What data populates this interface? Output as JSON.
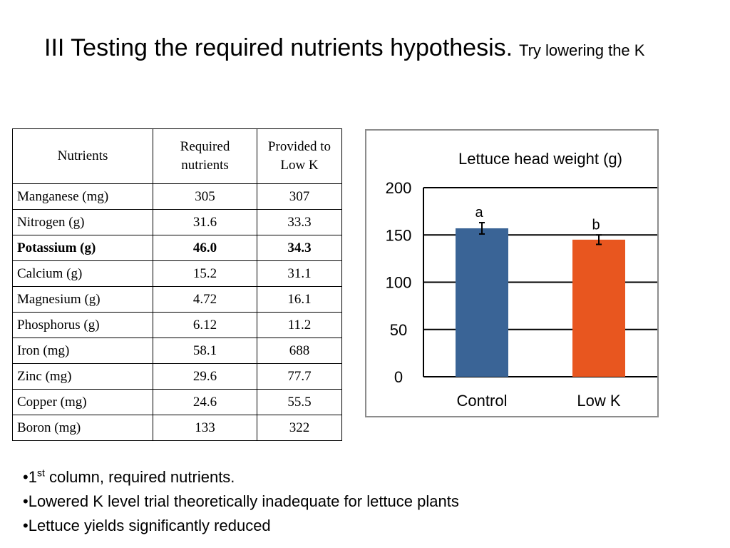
{
  "slide": {
    "title_main": "III  Testing the required nutrients hypothesis.",
    "title_sub": "Try lowering the K"
  },
  "table": {
    "headers": [
      "Nutrients",
      "Required nutrients",
      "Provided to Low K"
    ],
    "rows": [
      {
        "nutrient": "Manganese (mg)",
        "required": "305",
        "provided": "307"
      },
      {
        "nutrient": "Nitrogen (g)",
        "required": "31.6",
        "provided": "33.3"
      },
      {
        "nutrient": "Potassium (g)",
        "required": "46.0",
        "provided": "34.3",
        "bold": true
      },
      {
        "nutrient": "Calcium (g)",
        "required": "15.2",
        "provided": "31.1"
      },
      {
        "nutrient": "Magnesium (g)",
        "required": "4.72",
        "provided": "16.1"
      },
      {
        "nutrient": "Phosphorus (g)",
        "required": "6.12",
        "provided": "11.2"
      },
      {
        "nutrient": "Iron (mg)",
        "required": "58.1",
        "provided": "688"
      },
      {
        "nutrient": "Zinc (mg)",
        "required": "29.6",
        "provided": "77.7"
      },
      {
        "nutrient": "Copper (mg)",
        "required": "24.6",
        "provided": "55.5"
      },
      {
        "nutrient": "Boron (mg)",
        "required": "133",
        "provided": "322"
      }
    ]
  },
  "chart_data": {
    "type": "bar",
    "title": "Lettuce head weight (g)",
    "categories": [
      "Control",
      "Low K"
    ],
    "values": [
      157,
      145
    ],
    "error": [
      6,
      5
    ],
    "significance_labels": [
      "a",
      "b"
    ],
    "colors": [
      "#3a6496",
      "#e8561f"
    ],
    "ylim": [
      0,
      200
    ],
    "yticks": [
      0,
      50,
      100,
      150,
      200
    ],
    "grid": true,
    "xlabel": "",
    "ylabel": ""
  },
  "bullets": [
    {
      "text": "1",
      "sup": "st",
      "rest": " column, required nutrients."
    },
    {
      "text": "Lowered K level trial theoretically inadequate for lettuce plants",
      "sup": "",
      "rest": ""
    },
    {
      "text": "Lettuce yields significantly reduced",
      "sup": "",
      "rest": ""
    }
  ]
}
